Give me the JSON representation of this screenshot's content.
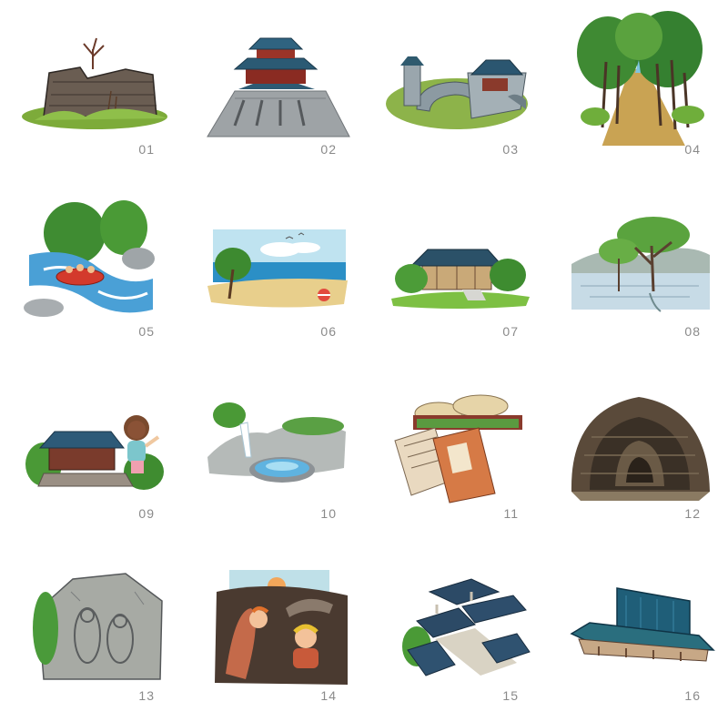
{
  "items": [
    {
      "number": "01",
      "icon": "fortress-ruin-icon"
    },
    {
      "number": "02",
      "icon": "palace-hall-icon"
    },
    {
      "number": "03",
      "icon": "fortress-wall-gate-icon"
    },
    {
      "number": "04",
      "icon": "forest-path-icon"
    },
    {
      "number": "05",
      "icon": "river-rafting-icon"
    },
    {
      "number": "06",
      "icon": "beach-icon"
    },
    {
      "number": "07",
      "icon": "hanok-house-icon"
    },
    {
      "number": "08",
      "icon": "wetland-trees-icon"
    },
    {
      "number": "09",
      "icon": "pavilion-visitor-icon"
    },
    {
      "number": "10",
      "icon": "pond-waterfall-icon"
    },
    {
      "number": "11",
      "icon": "old-books-icon"
    },
    {
      "number": "12",
      "icon": "tunnel-icon"
    },
    {
      "number": "13",
      "icon": "rock-carving-icon"
    },
    {
      "number": "14",
      "icon": "mudflat-play-icon"
    },
    {
      "number": "15",
      "icon": "village-rooftops-icon"
    },
    {
      "number": "16",
      "icon": "modern-building-icon"
    }
  ]
}
